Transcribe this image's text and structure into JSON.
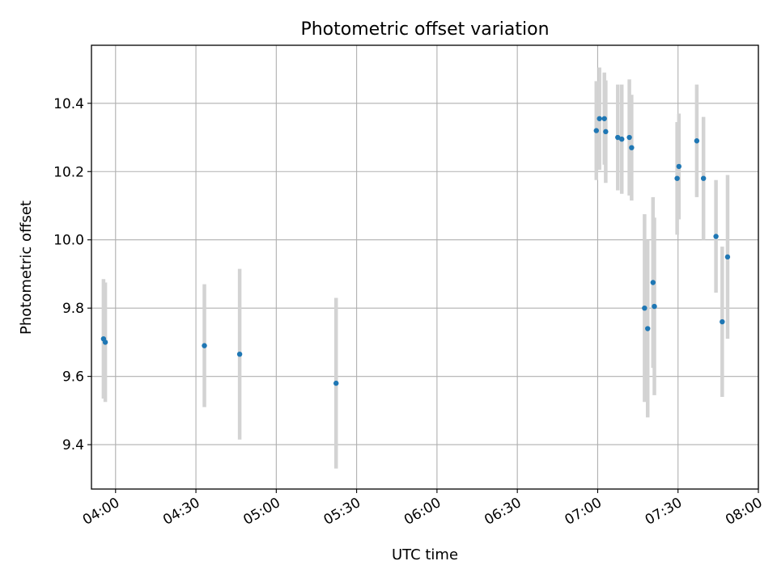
{
  "chart_data": {
    "type": "scatter",
    "title": "Photometric offset variation",
    "xlabel": "UTC time",
    "ylabel": "Photometric offset",
    "x_ticks": [
      "04:00",
      "04:30",
      "05:00",
      "05:30",
      "06:00",
      "06:30",
      "07:00",
      "07:30",
      "08:00"
    ],
    "y_ticks": [
      "9.4",
      "9.6",
      "9.8",
      "10.0",
      "10.2",
      "10.4"
    ],
    "xlim": [
      "03:51",
      "08:00"
    ],
    "ylim": [
      9.27,
      10.57
    ],
    "grid": true,
    "colors": {
      "marker": "#1f77b4",
      "errorbar": "#d3d3d3",
      "grid": "#b0b0b0"
    },
    "series": [
      {
        "points": [
          {
            "t": "03:55:30",
            "y": 9.71,
            "err": 0.175
          },
          {
            "t": "03:56:10",
            "y": 9.7,
            "err": 0.175
          },
          {
            "t": "04:33:10",
            "y": 9.69,
            "err": 0.18
          },
          {
            "t": "04:46:20",
            "y": 9.665,
            "err": 0.25
          },
          {
            "t": "05:22:20",
            "y": 9.58,
            "err": 0.25
          },
          {
            "t": "06:59:30",
            "y": 10.32,
            "err": 0.145
          },
          {
            "t": "07:00:40",
            "y": 10.355,
            "err": 0.15
          },
          {
            "t": "07:02:30",
            "y": 10.355,
            "err": 0.135
          },
          {
            "t": "07:03:00",
            "y": 10.317,
            "err": 0.15
          },
          {
            "t": "07:07:30",
            "y": 10.3,
            "err": 0.155
          },
          {
            "t": "07:09:00",
            "y": 10.295,
            "err": 0.16
          },
          {
            "t": "07:11:50",
            "y": 10.3,
            "err": 0.17
          },
          {
            "t": "07:12:40",
            "y": 10.27,
            "err": 0.155
          },
          {
            "t": "07:17:30",
            "y": 9.8,
            "err": 0.275
          },
          {
            "t": "07:18:40",
            "y": 9.74,
            "err": 0.26
          },
          {
            "t": "07:20:40",
            "y": 9.875,
            "err": 0.25
          },
          {
            "t": "07:21:10",
            "y": 9.805,
            "err": 0.26
          },
          {
            "t": "07:29:40",
            "y": 10.18,
            "err": 0.165
          },
          {
            "t": "07:30:20",
            "y": 10.215,
            "err": 0.155
          },
          {
            "t": "07:37:00",
            "y": 10.29,
            "err": 0.165
          },
          {
            "t": "07:39:30",
            "y": 10.18,
            "err": 0.18
          },
          {
            "t": "07:44:10",
            "y": 10.01,
            "err": 0.165
          },
          {
            "t": "07:46:30",
            "y": 9.76,
            "err": 0.22
          },
          {
            "t": "07:48:30",
            "y": 9.95,
            "err": 0.24
          }
        ]
      }
    ]
  }
}
